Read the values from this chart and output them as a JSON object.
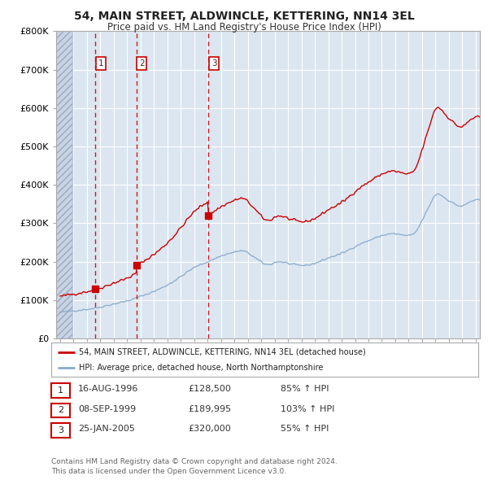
{
  "title": "54, MAIN STREET, ALDWINCLE, KETTERING, NN14 3EL",
  "subtitle": "Price paid vs. HM Land Registry's House Price Index (HPI)",
  "background_color": "#ffffff",
  "plot_bg_color": "#dce6f1",
  "grid_color": "#ffffff",
  "ylim": [
    0,
    800000
  ],
  "yticks": [
    0,
    100000,
    200000,
    300000,
    400000,
    500000,
    600000,
    700000,
    800000
  ],
  "ytick_labels": [
    "£0",
    "£100K",
    "£200K",
    "£300K",
    "£400K",
    "£500K",
    "£600K",
    "£700K",
    "£800K"
  ],
  "xlim_start": 1993.7,
  "xlim_end": 2025.3,
  "sale_dates": [
    1996.62,
    1999.69,
    2005.07
  ],
  "sale_prices": [
    128500,
    189995,
    320000
  ],
  "sale_labels": [
    "1",
    "2",
    "3"
  ],
  "subject_line_color": "#cc0000",
  "hpi_line_color": "#88aacc",
  "sale_marker_color": "#cc0000",
  "dashed_line_color": "#cc0000",
  "legend_label_subject": "54, MAIN STREET, ALDWINCLE, KETTERING, NN14 3EL (detached house)",
  "legend_label_hpi": "HPI: Average price, detached house, North Northamptonshire",
  "table_rows": [
    {
      "num": "1",
      "date": "16-AUG-1996",
      "price": "£128,500",
      "hpi": "85% ↑ HPI"
    },
    {
      "num": "2",
      "date": "08-SEP-1999",
      "price": "£189,995",
      "hpi": "103% ↑ HPI"
    },
    {
      "num": "3",
      "date": "25-JAN-2005",
      "price": "£320,000",
      "hpi": "55% ↑ HPI"
    }
  ],
  "footer_text": "Contains HM Land Registry data © Crown copyright and database right 2024.\nThis data is licensed under the Open Government Licence v3.0.",
  "hatch_end_year": 1994.9
}
